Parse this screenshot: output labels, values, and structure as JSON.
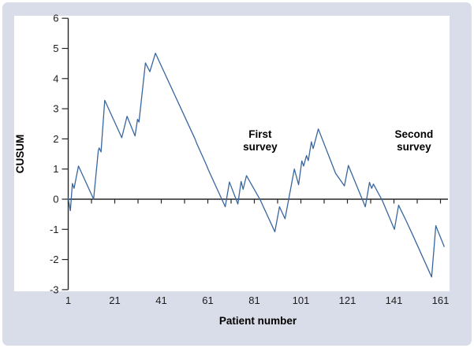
{
  "figure": {
    "background_color": "#d9dce9",
    "panel_color": "#ffffff",
    "axis_color": "#262626",
    "tick_label_color": "#1c1c1c"
  },
  "chart_data": {
    "type": "line",
    "title": "",
    "xlabel": "Patient number",
    "ylabel": "CUSUM",
    "xlim": [
      1,
      164
    ],
    "ylim": [
      -3,
      6
    ],
    "grid": false,
    "legend": null,
    "y_ticks": [
      6,
      5,
      4,
      3,
      2,
      1,
      0,
      -1,
      -2,
      -3
    ],
    "x_tick_labels": [
      1,
      21,
      41,
      61,
      81,
      101,
      121,
      141,
      161
    ],
    "x_minor_tick_start": 1,
    "x_minor_tick_step": 10,
    "x_minor_tick_end": 161,
    "zero_line": true,
    "annotations": [
      {
        "text_lines": [
          "First",
          "survey"
        ],
        "x": 83.5,
        "y": 1.96
      },
      {
        "text_lines": [
          "Second",
          "survey"
        ],
        "x": 149.6,
        "y": 1.96
      }
    ],
    "series": [
      {
        "name": "CUSUM",
        "color": "#38669e",
        "points": [
          [
            1,
            0.02
          ],
          [
            1.9,
            -0.38
          ],
          [
            2.8,
            0.52
          ],
          [
            3.5,
            0.36
          ],
          [
            5.4,
            1.1
          ],
          [
            11.9,
            0.0
          ],
          [
            13.9,
            1.6
          ],
          [
            14.3,
            1.7
          ],
          [
            15.1,
            1.57
          ],
          [
            16.7,
            3.28
          ],
          [
            24.0,
            2.04
          ],
          [
            26.3,
            2.75
          ],
          [
            29.7,
            2.1
          ],
          [
            30.8,
            2.65
          ],
          [
            31.4,
            2.56
          ],
          [
            34.2,
            4.52
          ],
          [
            36.1,
            4.23
          ],
          [
            38.5,
            4.84
          ],
          [
            55.6,
            1.98
          ],
          [
            56.2,
            1.86
          ],
          [
            60.6,
            1.1
          ],
          [
            61.2,
            0.98
          ],
          [
            67.0,
            0.0
          ],
          [
            68.5,
            -0.25
          ],
          [
            70.3,
            0.57
          ],
          [
            73.9,
            -0.16
          ],
          [
            75.3,
            0.59
          ],
          [
            76.2,
            0.33
          ],
          [
            77.6,
            0.78
          ],
          [
            83.5,
            -0.02
          ],
          [
            89.8,
            -1.08
          ],
          [
            91.8,
            -0.25
          ],
          [
            94.2,
            -0.65
          ],
          [
            98.2,
            1.0
          ],
          [
            100.0,
            0.48
          ],
          [
            101.4,
            1.27
          ],
          [
            102.2,
            1.1
          ],
          [
            103.4,
            1.45
          ],
          [
            104.2,
            1.28
          ],
          [
            105.5,
            1.9
          ],
          [
            106.3,
            1.68
          ],
          [
            108.5,
            2.33
          ],
          [
            115.9,
            0.86
          ],
          [
            119.7,
            0.44
          ],
          [
            121.4,
            1.12
          ],
          [
            128.7,
            -0.25
          ],
          [
            130.5,
            0.56
          ],
          [
            131.4,
            0.36
          ],
          [
            132.2,
            0.5
          ],
          [
            136.0,
            -0.05
          ],
          [
            141.2,
            -1.0
          ],
          [
            143.0,
            -0.2
          ],
          [
            146.0,
            -0.68
          ],
          [
            148.8,
            -1.14
          ],
          [
            157.2,
            -2.58
          ],
          [
            159.0,
            -0.88
          ],
          [
            162.6,
            -1.57
          ]
        ]
      }
    ]
  }
}
